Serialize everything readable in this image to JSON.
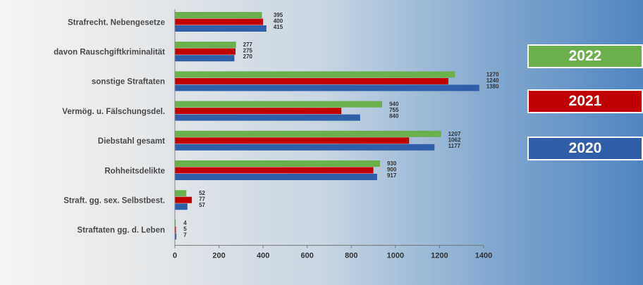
{
  "chart_data": {
    "type": "bar",
    "orientation": "horizontal",
    "categories": [
      "Strafrecht. Nebengesetze",
      "davon Rauschgiftkriminalität",
      "sonstige Straftaten",
      "Vermög. u. Fälschungsdel.",
      "Diebstahl gesamt",
      "Rohheitsdelikte",
      "Straft. gg. sex. Selbstbest.",
      "Straftaten gg. d. Leben"
    ],
    "series": [
      {
        "name": "2022",
        "color": "#6ab04c",
        "values": [
          395,
          277,
          1270,
          940,
          1207,
          930,
          52,
          4
        ]
      },
      {
        "name": "2021",
        "color": "#c00000",
        "values": [
          400,
          275,
          1240,
          755,
          1062,
          900,
          77,
          5
        ]
      },
      {
        "name": "2020",
        "color": "#2e5fa8",
        "values": [
          415,
          270,
          1380,
          840,
          1177,
          917,
          57,
          7
        ]
      }
    ],
    "xlim": [
      0,
      1400
    ],
    "xticks": [
      0,
      200,
      400,
      600,
      800,
      1000,
      1200,
      1400
    ],
    "legend": "right",
    "grid": false
  }
}
